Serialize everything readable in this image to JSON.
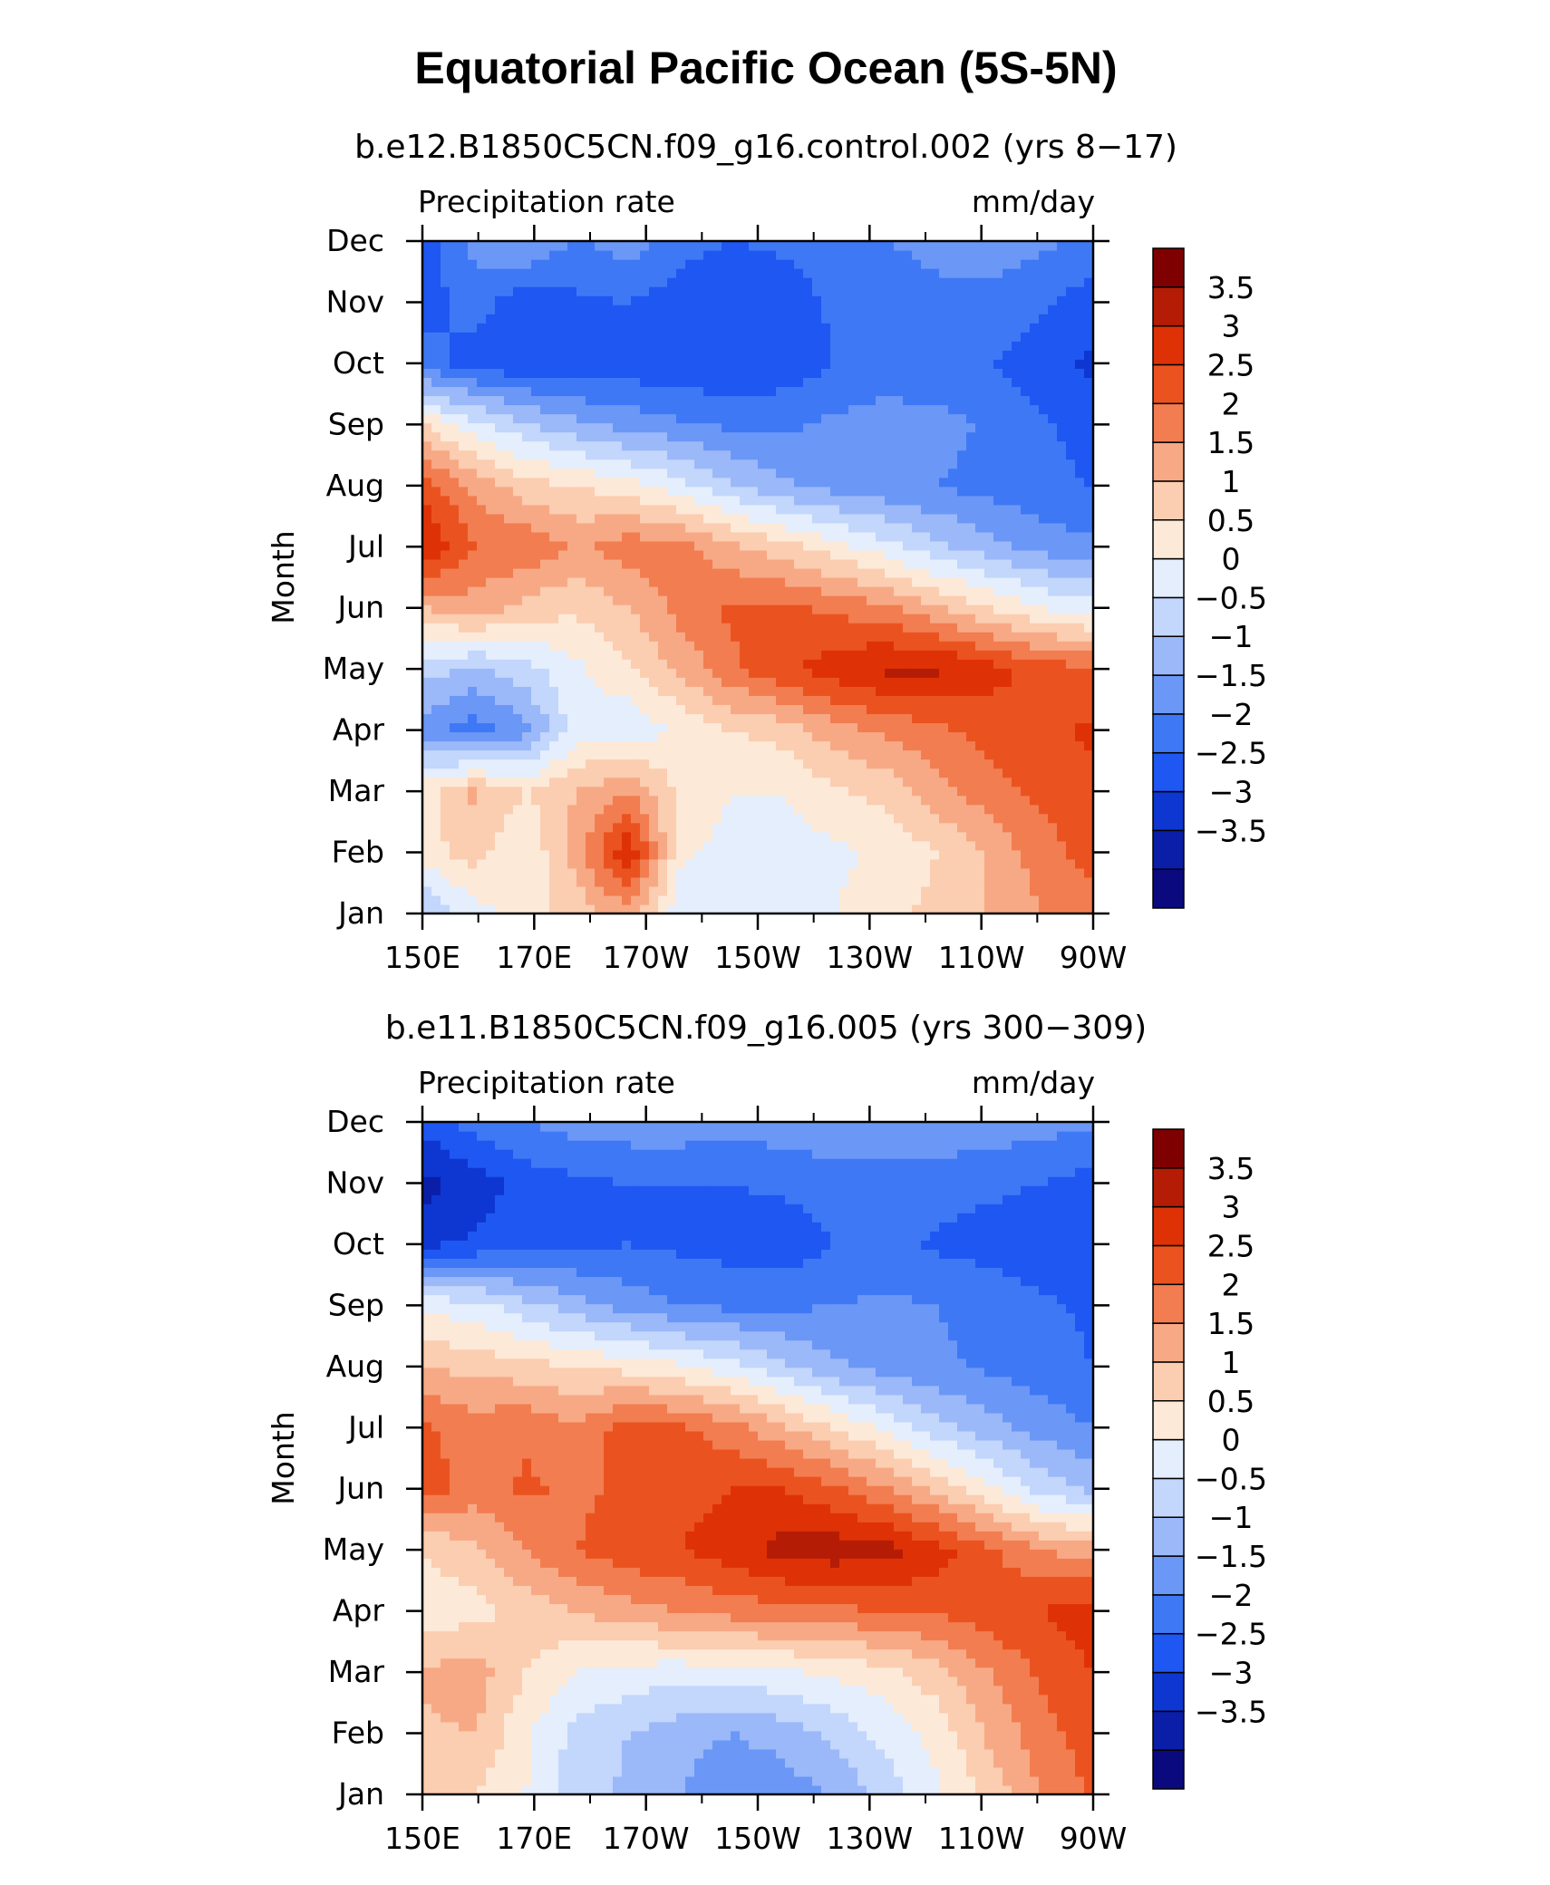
{
  "title": "Equatorial Pacific Ocean (5S-5N)",
  "chart_data": [
    {
      "type": "heatmap",
      "subtitle": "b.e12.B1850C5CN.f09_g16.control.002 (yrs 8−17)",
      "left_label": "Precipitation rate",
      "right_label": "mm/day",
      "ylabel": "Month",
      "x_ticks": [
        "150E",
        "170E",
        "170W",
        "150W",
        "130W",
        "110W",
        "90W"
      ],
      "y_ticks": [
        "Jan",
        "Feb",
        "Mar",
        "Apr",
        "May",
        "Jun",
        "Jul",
        "Aug",
        "Sep",
        "Oct",
        "Nov",
        "Dec"
      ],
      "x_range": [
        "150E",
        "90W"
      ],
      "y_range": [
        "Jan",
        "Dec"
      ],
      "colorbar_labels": [
        "3.5",
        "3",
        "2.5",
        "2",
        "1.5",
        "1",
        "0.5",
        "0",
        "−0.5",
        "−1",
        "−1.5",
        "−2",
        "−2.5",
        "−3",
        "−3.5"
      ],
      "rows": [
        [
          -0.6,
          0.3,
          0.8,
          1.2,
          1.8,
          0.1,
          0.2,
          0.3,
          0.5,
          0.8,
          1.2,
          1.5,
          2.0,
          2.3
        ],
        [
          0.8,
          1.2,
          0.5,
          1.8,
          3.5,
          0.6,
          0.3,
          0.2,
          0.4,
          0.6,
          1.0,
          1.6,
          2.3,
          2.7
        ],
        [
          0.8,
          1.6,
          1.0,
          1.5,
          2.0,
          0.9,
          0.5,
          0.5,
          0.9,
          1.2,
          1.8,
          2.3,
          2.6,
          2.8
        ],
        [
          -1.3,
          -1.8,
          -1.2,
          0.3,
          0.1,
          0.6,
          1.0,
          1.2,
          1.8,
          2.1,
          2.4,
          2.7,
          2.9,
          3.1
        ],
        [
          -0.3,
          -0.6,
          -0.2,
          0.4,
          0.9,
          1.6,
          2.4,
          2.9,
          3.3,
          3.6,
          3.6,
          3.2,
          2.8,
          2.6
        ],
        [
          1.5,
          1.8,
          1.3,
          1.1,
          1.5,
          2.2,
          2.6,
          2.6,
          2.4,
          2.1,
          1.6,
          1.0,
          0.5,
          0.2
        ],
        [
          3.6,
          2.5,
          2.4,
          1.9,
          2.3,
          2.2,
          1.6,
          1.2,
          0.7,
          0.2,
          -0.4,
          -0.8,
          -1.2,
          -1.4
        ],
        [
          2.8,
          1.9,
          1.2,
          1.0,
          0.7,
          0.2,
          -0.4,
          -0.9,
          -1.2,
          -1.4,
          -1.5,
          -1.7,
          -1.9,
          -2.0
        ],
        [
          1.0,
          0.2,
          -0.4,
          -0.9,
          -1.2,
          -1.4,
          -1.6,
          -1.6,
          -1.4,
          -1.2,
          -1.3,
          -1.6,
          -1.9,
          -2.2
        ],
        [
          -1.8,
          -2.2,
          -2.4,
          -2.3,
          -2.3,
          -2.4,
          -2.5,
          -2.3,
          -2.0,
          -1.9,
          -1.9,
          -2.0,
          -2.3,
          -2.6
        ],
        [
          -2.2,
          -1.8,
          -2.3,
          -2.1,
          -2.0,
          -2.3,
          -2.5,
          -2.3,
          -1.9,
          -1.7,
          -1.6,
          -1.6,
          -1.9,
          -2.3
        ],
        [
          -2.4,
          -1.3,
          -1.0,
          -1.6,
          -1.2,
          -1.8,
          -2.0,
          -1.9,
          -1.7,
          -1.5,
          -1.4,
          -1.3,
          -1.4,
          -1.6
        ]
      ]
    },
    {
      "type": "heatmap",
      "subtitle": "b.e11.B1850C5CN.f09_g16.005 (yrs 300−309)",
      "left_label": "Precipitation rate",
      "right_label": "mm/day",
      "ylabel": "Month",
      "x_ticks": [
        "150E",
        "170E",
        "170W",
        "150W",
        "130W",
        "110W",
        "90W"
      ],
      "y_ticks": [
        "Jan",
        "Feb",
        "Mar",
        "Apr",
        "May",
        "Jun",
        "Jul",
        "Aug",
        "Sep",
        "Oct",
        "Nov",
        "Dec"
      ],
      "x_range": [
        "150E",
        "90W"
      ],
      "y_range": [
        "Jan",
        "Dec"
      ],
      "colorbar_labels": [
        "3.5",
        "3",
        "2.5",
        "2",
        "1.5",
        "1",
        "0.5",
        "0",
        "−0.5",
        "−1",
        "−1.5",
        "−2",
        "−2.5",
        "−3",
        "−3.5"
      ],
      "rows": [
        [
          1.2,
          1.0,
          0.5,
          -0.3,
          -0.6,
          -1.0,
          -1.4,
          -1.3,
          -0.9,
          -0.3,
          0.4,
          1.2,
          2.0,
          2.6
        ],
        [
          1.4,
          1.5,
          0.6,
          -0.2,
          -0.5,
          -0.8,
          -1.0,
          -0.8,
          -0.4,
          0.2,
          0.7,
          1.6,
          2.3,
          2.8
        ],
        [
          1.6,
          1.8,
          1.0,
          0.5,
          0.3,
          0.2,
          0.3,
          0.4,
          0.6,
          0.8,
          1.3,
          2.0,
          2.6,
          3.0
        ],
        [
          0.6,
          0.8,
          1.2,
          1.5,
          1.8,
          2.0,
          2.2,
          2.3,
          2.4,
          2.5,
          2.6,
          2.8,
          3.0,
          3.3
        ],
        [
          1.0,
          1.4,
          2.0,
          2.5,
          2.8,
          3.0,
          3.3,
          3.7,
          3.8,
          3.7,
          3.2,
          2.6,
          2.0,
          1.8
        ],
        [
          2.8,
          2.2,
          2.6,
          2.4,
          2.6,
          2.8,
          3.0,
          3.0,
          2.6,
          2.0,
          1.4,
          0.6,
          -0.2,
          -0.6
        ],
        [
          2.6,
          2.3,
          2.4,
          2.1,
          2.8,
          2.6,
          2.2,
          1.6,
          1.0,
          0.4,
          -0.3,
          -0.8,
          -1.2,
          -1.5
        ],
        [
          1.5,
          1.3,
          1.2,
          1.0,
          0.8,
          0.6,
          0.2,
          -0.4,
          -0.9,
          -1.2,
          -1.4,
          -1.6,
          -1.8,
          -2.0
        ],
        [
          0.4,
          0.2,
          -0.3,
          -0.8,
          -1.2,
          -1.5,
          -1.6,
          -1.6,
          -1.5,
          -1.4,
          -1.5,
          -1.7,
          -1.9,
          -2.1
        ],
        [
          -2.6,
          -2.4,
          -2.2,
          -2.1,
          -2.0,
          -2.1,
          -2.2,
          -2.3,
          -2.0,
          -1.8,
          -2.1,
          -2.2,
          -2.3,
          -2.5
        ],
        [
          -3.2,
          -2.8,
          -2.3,
          -2.1,
          -2.0,
          -2.0,
          -2.0,
          -1.9,
          -1.8,
          -1.7,
          -1.8,
          -1.9,
          -2.0,
          -2.2
        ],
        [
          -2.3,
          -1.8,
          -1.5,
          -1.3,
          -1.2,
          -1.2,
          -1.3,
          -1.2,
          -1.1,
          -1.1,
          -1.1,
          -1.2,
          -1.3,
          -1.4
        ]
      ]
    }
  ],
  "colors": {
    "levels": [
      "#0a0a7e",
      "#0a1ea8",
      "#0e37d2",
      "#1f57f2",
      "#3f78f5",
      "#6b97f6",
      "#9bb8f9",
      "#c3d6fb",
      "#e4eefd",
      "#fde9d7",
      "#fbcdb1",
      "#f7a985",
      "#f27d50",
      "#ea5320",
      "#de3206",
      "#b51c05",
      "#7f0000"
    ]
  }
}
